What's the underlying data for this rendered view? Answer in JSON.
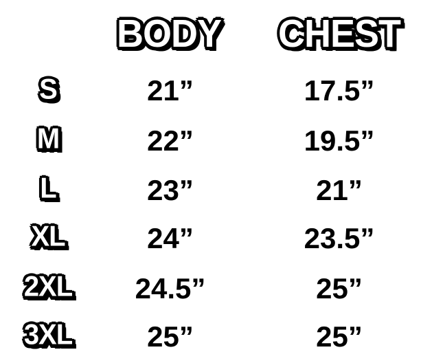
{
  "headers": {
    "body": "BODY",
    "chest": "CHEST"
  },
  "rows": [
    {
      "size": "S",
      "body": "21”",
      "chest": "17.5”"
    },
    {
      "size": "M",
      "body": "22”",
      "chest": "19.5”"
    },
    {
      "size": "L",
      "body": "23”",
      "chest": "21”"
    },
    {
      "size": "XL",
      "body": "24”",
      "chest": "23.5”"
    },
    {
      "size": "2XL",
      "body": "24.5”",
      "chest": "25”"
    },
    {
      "size": "3XL",
      "body": "25”",
      "chest": "25”"
    }
  ]
}
